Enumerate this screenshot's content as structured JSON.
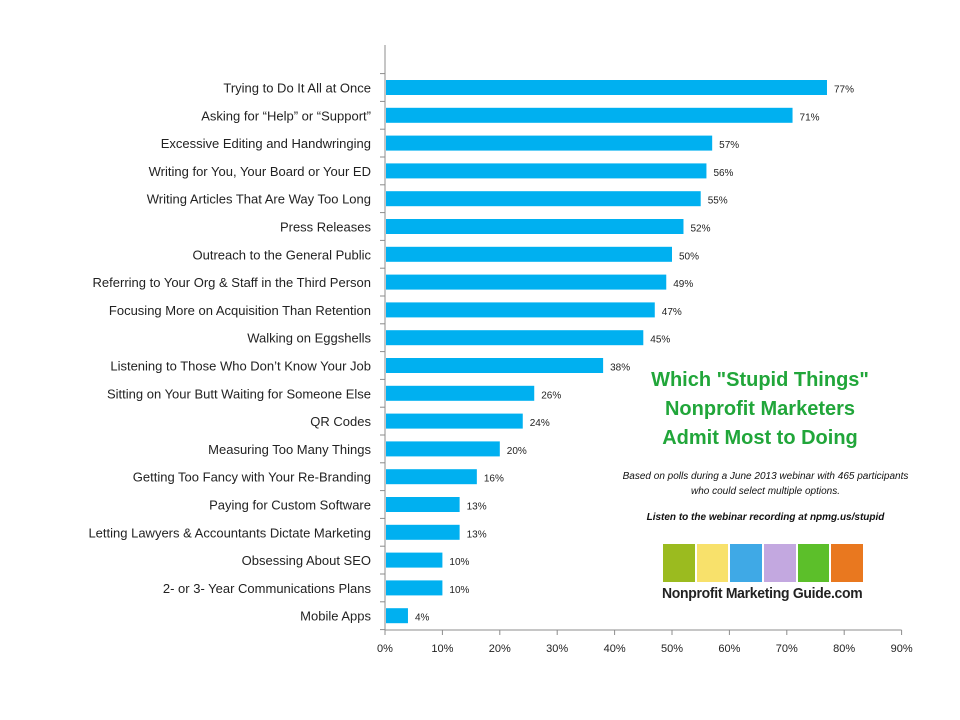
{
  "chart_data": {
    "type": "bar",
    "orientation": "horizontal",
    "categories": [
      "Trying to Do It All at Once",
      "Asking for “Help” or “Support”",
      "Excessive Editing and Handwringing",
      "Writing for You, Your Board or Your ED",
      "Writing Articles That Are Way Too Long",
      "Press Releases",
      "Outreach to the General Public",
      "Referring to Your Org & Staff in the Third Person",
      "Focusing More on Acquisition Than Retention",
      "Walking on Eggshells",
      "Listening to Those Who Don’t Know Your Job",
      "Sitting on Your Butt Waiting for Someone Else",
      "QR Codes",
      "Measuring Too Many Things",
      "Getting Too Fancy with Your Re-Branding",
      "Paying for Custom Software",
      "Letting Lawyers & Accountants Dictate Marketing",
      "Obsessing About SEO",
      "2- or 3- Year Communications Plans",
      "Mobile Apps"
    ],
    "values": [
      77,
      71,
      57,
      56,
      55,
      52,
      50,
      49,
      47,
      45,
      38,
      26,
      24,
      20,
      16,
      13,
      13,
      10,
      10,
      4
    ],
    "data_labels": [
      "77%",
      "71%",
      "57%",
      "56%",
      "55%",
      "52%",
      "50%",
      "49%",
      "47%",
      "45%",
      "38%",
      "26%",
      "24%",
      "20%",
      "16%",
      "13%",
      "13%",
      "10%",
      "10%",
      "4%"
    ],
    "x_ticks": [
      0,
      10,
      20,
      30,
      40,
      50,
      60,
      70,
      80,
      90
    ],
    "x_tick_labels": [
      "0%",
      "10%",
      "20%",
      "30%",
      "40%",
      "50%",
      "60%",
      "70%",
      "80%",
      "90%"
    ],
    "xlim": [
      0,
      90
    ],
    "grid": false,
    "legend": "none",
    "title": "",
    "xlabel": "",
    "ylabel": "",
    "bar_color": "#00b0f0"
  },
  "annotation": {
    "title_lines": [
      "Which \"Stupid Things\"",
      "Nonprofit Marketers",
      "Admit Most to Doing"
    ],
    "subtitle_lines": [
      "Based on polls during a June 2013 webinar with 465 participants",
      "who could select multiple options."
    ],
    "listen_text": "Listen to the webinar recording  at npmg.us/stupid",
    "title_color": "#21a63a"
  },
  "logo": {
    "text": "Nonprofit Marketing Guide.com",
    "square_colors": [
      "#9bbb1f",
      "#f8e16b",
      "#3fa9e6",
      "#c3a8e0",
      "#5cbf2a",
      "#e9781f"
    ]
  }
}
